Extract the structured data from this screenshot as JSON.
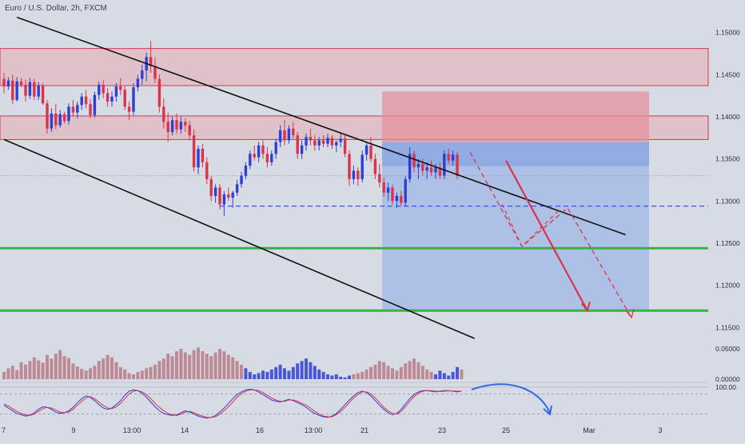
{
  "header": {
    "title": "Euro / U.S. Dollar, 2h, FXCM"
  },
  "colors": {
    "background": "#d7dbe3",
    "bull": "#2f3fd6",
    "bear": "#d9344a",
    "support": "#3cae4a",
    "resistance_zone": "#e8a3a8",
    "trade_target_zone": "#9fb7e6",
    "channel": "#111111"
  },
  "chart_data": [
    {
      "type": "candlestick",
      "title": "Euro / U.S. Dollar, 2h, FXCM",
      "ylim": [
        1.1137,
        1.1512
      ],
      "y_ticks": [
        "1.15000",
        "1.14500",
        "1.14000",
        "1.13500",
        "1.13000",
        "1.12500",
        "1.12000",
        "1.11500"
      ],
      "x_ticks": [
        "7",
        "9",
        "13:00",
        "14",
        "16",
        "13:00",
        "21",
        "23",
        "25",
        "Mar",
        "3"
      ],
      "grid": false,
      "candles": [
        [
          1.1445,
          1.1452,
          1.1428,
          1.1436
        ],
        [
          1.1436,
          1.1447,
          1.1432,
          1.1443
        ],
        [
          1.1443,
          1.145,
          1.1415,
          1.142
        ],
        [
          1.142,
          1.1447,
          1.1418,
          1.1442
        ],
        [
          1.1442,
          1.1446,
          1.1435,
          1.1438
        ],
        [
          1.1438,
          1.1444,
          1.1418,
          1.1425
        ],
        [
          1.1425,
          1.1446,
          1.1421,
          1.1441
        ],
        [
          1.1441,
          1.1445,
          1.142,
          1.1424
        ],
        [
          1.1424,
          1.1441,
          1.142,
          1.1437
        ],
        [
          1.1437,
          1.144,
          1.1414,
          1.1416
        ],
        [
          1.1416,
          1.142,
          1.138,
          1.1386
        ],
        [
          1.1386,
          1.141,
          1.1382,
          1.1404
        ],
        [
          1.1404,
          1.1415,
          1.1385,
          1.139
        ],
        [
          1.139,
          1.1408,
          1.1387,
          1.1403
        ],
        [
          1.1403,
          1.1406,
          1.1392,
          1.1395
        ],
        [
          1.1395,
          1.1416,
          1.1391,
          1.1412
        ],
        [
          1.1412,
          1.142,
          1.14,
          1.1405
        ],
        [
          1.1405,
          1.1418,
          1.1398,
          1.1414
        ],
        [
          1.1414,
          1.1428,
          1.1408,
          1.1424
        ],
        [
          1.1424,
          1.1432,
          1.141,
          1.1415
        ],
        [
          1.1415,
          1.1421,
          1.1398,
          1.1402
        ],
        [
          1.1402,
          1.143,
          1.1399,
          1.1426
        ],
        [
          1.1426,
          1.1442,
          1.142,
          1.1438
        ],
        [
          1.1438,
          1.1444,
          1.1422,
          1.1428
        ],
        [
          1.1428,
          1.1434,
          1.1412,
          1.1418
        ],
        [
          1.1418,
          1.143,
          1.1412,
          1.1424
        ],
        [
          1.1424,
          1.144,
          1.1418,
          1.1436
        ],
        [
          1.1436,
          1.1446,
          1.1426,
          1.1432
        ],
        [
          1.1432,
          1.1436,
          1.1408,
          1.1412
        ],
        [
          1.1412,
          1.1418,
          1.1396,
          1.1406
        ],
        [
          1.1406,
          1.144,
          1.1402,
          1.1435
        ],
        [
          1.1435,
          1.145,
          1.143,
          1.1445
        ],
        [
          1.1445,
          1.1462,
          1.1438,
          1.1455
        ],
        [
          1.1455,
          1.1476,
          1.1442,
          1.1471
        ],
        [
          1.1471,
          1.149,
          1.1452,
          1.146
        ],
        [
          1.146,
          1.147,
          1.144,
          1.1445
        ],
        [
          1.1445,
          1.145,
          1.1405,
          1.1412
        ],
        [
          1.1412,
          1.1422,
          1.1386,
          1.1394
        ],
        [
          1.1394,
          1.1405,
          1.137,
          1.1382
        ],
        [
          1.1382,
          1.14,
          1.1378,
          1.1396
        ],
        [
          1.1396,
          1.1404,
          1.138,
          1.1385
        ],
        [
          1.1385,
          1.14,
          1.138,
          1.1394
        ],
        [
          1.1394,
          1.1398,
          1.1382,
          1.139
        ],
        [
          1.139,
          1.1395,
          1.1372,
          1.1378
        ],
        [
          1.1378,
          1.1385,
          1.1335,
          1.134
        ],
        [
          1.134,
          1.1366,
          1.1332,
          1.1362
        ],
        [
          1.1362,
          1.1368,
          1.134,
          1.1346
        ],
        [
          1.1346,
          1.1352,
          1.132,
          1.1326
        ],
        [
          1.1326,
          1.133,
          1.13,
          1.1306
        ],
        [
          1.1306,
          1.132,
          1.1298,
          1.1316
        ],
        [
          1.1316,
          1.132,
          1.129,
          1.1296
        ],
        [
          1.1296,
          1.1312,
          1.1282,
          1.1308
        ],
        [
          1.1308,
          1.1316,
          1.13,
          1.1304
        ],
        [
          1.1304,
          1.1312,
          1.1292,
          1.131
        ],
        [
          1.131,
          1.1325,
          1.1306,
          1.132
        ],
        [
          1.132,
          1.1335,
          1.1316,
          1.133
        ],
        [
          1.133,
          1.1346,
          1.1326,
          1.1342
        ],
        [
          1.1342,
          1.136,
          1.1338,
          1.1356
        ],
        [
          1.1356,
          1.1366,
          1.1348,
          1.1352
        ],
        [
          1.1352,
          1.137,
          1.1346,
          1.1366
        ],
        [
          1.1366,
          1.1372,
          1.135,
          1.1356
        ],
        [
          1.1356,
          1.1364,
          1.134,
          1.1346
        ],
        [
          1.1346,
          1.136,
          1.1342,
          1.1356
        ],
        [
          1.1356,
          1.1374,
          1.135,
          1.137
        ],
        [
          1.137,
          1.139,
          1.1364,
          1.1384
        ],
        [
          1.1384,
          1.1396,
          1.1366,
          1.1372
        ],
        [
          1.1372,
          1.139,
          1.1368,
          1.1386
        ],
        [
          1.1386,
          1.1394,
          1.1374,
          1.1378
        ],
        [
          1.1378,
          1.1382,
          1.135,
          1.1356
        ],
        [
          1.1356,
          1.1372,
          1.135,
          1.1366
        ],
        [
          1.1366,
          1.138,
          1.136,
          1.1376
        ],
        [
          1.1376,
          1.1386,
          1.1366,
          1.1372
        ],
        [
          1.1372,
          1.1378,
          1.136,
          1.1366
        ],
        [
          1.1366,
          1.1376,
          1.136,
          1.1372
        ],
        [
          1.1372,
          1.1378,
          1.1364,
          1.1368
        ],
        [
          1.1368,
          1.138,
          1.1364,
          1.1375
        ],
        [
          1.1375,
          1.1378,
          1.1362,
          1.1366
        ],
        [
          1.1366,
          1.1372,
          1.1358,
          1.137
        ],
        [
          1.137,
          1.138,
          1.1364,
          1.1374
        ],
        [
          1.1374,
          1.1378,
          1.1352,
          1.1356
        ],
        [
          1.1356,
          1.136,
          1.1318,
          1.1326
        ],
        [
          1.1326,
          1.1342,
          1.132,
          1.1336
        ],
        [
          1.1336,
          1.134,
          1.1318,
          1.1326
        ],
        [
          1.1326,
          1.136,
          1.1322,
          1.1355
        ],
        [
          1.1355,
          1.137,
          1.1348,
          1.1366
        ],
        [
          1.1366,
          1.1376,
          1.1346,
          1.135
        ],
        [
          1.135,
          1.1356,
          1.1326,
          1.1332
        ],
        [
          1.1332,
          1.1344,
          1.1316,
          1.1322
        ],
        [
          1.1322,
          1.1328,
          1.1305,
          1.131
        ],
        [
          1.131,
          1.1322,
          1.13,
          1.1316
        ],
        [
          1.1316,
          1.132,
          1.1296,
          1.13
        ],
        [
          1.13,
          1.131,
          1.1292,
          1.1306
        ],
        [
          1.1306,
          1.1312,
          1.1294,
          1.1298
        ],
        [
          1.1298,
          1.133,
          1.1294,
          1.1326
        ],
        [
          1.1326,
          1.1364,
          1.1322,
          1.1356
        ],
        [
          1.1356,
          1.136,
          1.1334,
          1.134
        ],
        [
          1.134,
          1.135,
          1.1326,
          1.1344
        ],
        [
          1.1344,
          1.135,
          1.133,
          1.1336
        ],
        [
          1.1336,
          1.1346,
          1.1326,
          1.134
        ],
        [
          1.134,
          1.1348,
          1.133,
          1.1334
        ],
        [
          1.1334,
          1.1344,
          1.1326,
          1.134
        ],
        [
          1.134,
          1.1346,
          1.1326,
          1.133
        ],
        [
          1.133,
          1.136,
          1.1326,
          1.1356
        ],
        [
          1.1356,
          1.1362,
          1.1344,
          1.1348
        ],
        [
          1.1348,
          1.136,
          1.1342,
          1.1355
        ],
        [
          1.1355,
          1.1358,
          1.1326,
          1.133
        ]
      ],
      "zones": [
        {
          "type": "resistance",
          "low": 1.1437,
          "high": 1.1481
        },
        {
          "type": "resistance",
          "low": 1.1373,
          "high": 1.1401
        }
      ],
      "position": {
        "type": "short",
        "stop": 1.143,
        "entry": 1.137,
        "target": 1.117
      },
      "support_lines": [
        1.1244,
        1.117
      ],
      "dashed_level": 1.1294,
      "channel_lines": [
        {
          "p1": [
            3,
            1.1518
          ],
          "p2": [
            144,
            1.126
          ]
        },
        {
          "p1": [
            0,
            1.1373
          ],
          "p2": [
            109,
            1.1137
          ]
        }
      ],
      "projection_main": [
        [
          100,
          1.1348
        ],
        [
          117,
          1.117
        ]
      ],
      "projection_alt": [
        [
          94,
          1.1352
        ],
        [
          103,
          1.1248
        ],
        [
          112,
          1.1296
        ],
        [
          128,
          1.117
        ]
      ]
    },
    {
      "type": "bar",
      "title": "",
      "y_ticks": [
        "0.05000",
        "0.00000"
      ],
      "ylim": [
        0,
        0.058
      ],
      "values": [
        0.012,
        0.018,
        0.022,
        0.015,
        0.028,
        0.024,
        0.03,
        0.036,
        0.031,
        0.027,
        0.04,
        0.034,
        0.042,
        0.048,
        0.038,
        0.035,
        0.026,
        0.021,
        0.017,
        0.014,
        0.018,
        0.022,
        0.03,
        0.034,
        0.04,
        0.036,
        0.028,
        0.02,
        0.016,
        0.01,
        0.008,
        0.012,
        0.014,
        0.018,
        0.02,
        0.024,
        0.03,
        0.034,
        0.042,
        0.038,
        0.046,
        0.05,
        0.044,
        0.04,
        0.048,
        0.052,
        0.046,
        0.042,
        0.038,
        0.044,
        0.05,
        0.046,
        0.04,
        0.036,
        0.03,
        0.024,
        0.018,
        0.012,
        0.008,
        0.01,
        0.014,
        0.012,
        0.016,
        0.02,
        0.024,
        0.018,
        0.014,
        0.02,
        0.026,
        0.03,
        0.034,
        0.028,
        0.022,
        0.016,
        0.012,
        0.008,
        0.006,
        0.008,
        0.004,
        0.003,
        0.006,
        0.008,
        0.01,
        0.012,
        0.016,
        0.02,
        0.024,
        0.03,
        0.028,
        0.022,
        0.018,
        0.014,
        0.02,
        0.026,
        0.03,
        0.034,
        0.028,
        0.022,
        0.016,
        0.012,
        0.008,
        0.014,
        0.01,
        0.006,
        0.012,
        0.02,
        0.016
      ],
      "colors_by_sign": [
        "bear",
        "bear",
        "bear",
        "bear",
        "bear",
        "bear",
        "bear",
        "bear",
        "bear",
        "bear",
        "bear",
        "bear",
        "bear",
        "bear",
        "bear",
        "bear",
        "bear",
        "bear",
        "bear",
        "bear",
        "bear",
        "bear",
        "bear",
        "bear",
        "bear",
        "bear",
        "bear",
        "bear",
        "bear",
        "bear",
        "bear",
        "bear",
        "bear",
        "bear",
        "bear",
        "bear",
        "bear",
        "bear",
        "bear",
        "bear",
        "bear",
        "bear",
        "bear",
        "bear",
        "bear",
        "bear",
        "bear",
        "bear",
        "bear",
        "bear",
        "bear",
        "bear",
        "bear",
        "bear",
        "bear",
        "bear",
        "bull",
        "bull",
        "bull",
        "bull",
        "bull",
        "bull",
        "bull",
        "bull",
        "bull",
        "bull",
        "bull",
        "bull",
        "bull",
        "bull",
        "bull",
        "bull",
        "bull",
        "bull",
        "bull",
        "bull",
        "bull",
        "bull",
        "bull",
        "bull",
        "bull",
        "bear",
        "bear",
        "bear",
        "bear",
        "bear",
        "bear",
        "bear",
        "bear",
        "bear",
        "bear",
        "bear",
        "bear",
        "bear",
        "bear",
        "bear",
        "bear",
        "bear",
        "bear",
        "bear",
        "bull",
        "bull",
        "bull",
        "bull",
        "bull",
        "bull"
      ]
    },
    {
      "type": "line",
      "title": "",
      "y_ticks": [
        "100.00"
      ],
      "ylim": [
        0,
        100
      ],
      "levels": [
        80,
        20
      ],
      "series": [
        {
          "color": "bull",
          "values": [
            46,
            38,
            30,
            22,
            18,
            14,
            16,
            24,
            34,
            42,
            40,
            34,
            26,
            22,
            24,
            30,
            40,
            54,
            66,
            74,
            70,
            60,
            48,
            38,
            34,
            38,
            48,
            60,
            76,
            88,
            92,
            90,
            82,
            70,
            56,
            42,
            30,
            22,
            18,
            16,
            18,
            24,
            30,
            26,
            20,
            14,
            10,
            8,
            10,
            16,
            26,
            38,
            52,
            66,
            78,
            86,
            92,
            94,
            92,
            86,
            78,
            70,
            62,
            58,
            56,
            60,
            64,
            60,
            54,
            48,
            40,
            30,
            22,
            16,
            12,
            10,
            14,
            22,
            34,
            48,
            62,
            74,
            84,
            88,
            84,
            74,
            60,
            46,
            34,
            24,
            18,
            22,
            34,
            50,
            66,
            78,
            86,
            90,
            90,
            88,
            86,
            88,
            90,
            90,
            88,
            86,
            88
          ]
        },
        {
          "color": "bear",
          "values": [
            50,
            44,
            36,
            28,
            22,
            18,
            16,
            20,
            28,
            36,
            40,
            38,
            32,
            26,
            24,
            26,
            34,
            46,
            58,
            68,
            72,
            66,
            56,
            46,
            38,
            36,
            42,
            52,
            66,
            80,
            88,
            90,
            86,
            78,
            66,
            52,
            40,
            30,
            22,
            18,
            16,
            20,
            26,
            28,
            24,
            18,
            14,
            10,
            10,
            12,
            20,
            30,
            42,
            56,
            70,
            80,
            88,
            92,
            92,
            90,
            84,
            76,
            68,
            62,
            58,
            58,
            62,
            62,
            58,
            52,
            46,
            38,
            28,
            20,
            14,
            12,
            12,
            18,
            28,
            40,
            54,
            68,
            78,
            86,
            86,
            80,
            68,
            54,
            40,
            30,
            22,
            20,
            28,
            42,
            58,
            72,
            82,
            88,
            90,
            90,
            88,
            87,
            88,
            89,
            89,
            88,
            88
          ]
        }
      ],
      "projection_curve": [
        [
          106,
          88
        ],
        [
          114,
          94
        ],
        [
          124,
          30
        ]
      ]
    }
  ]
}
